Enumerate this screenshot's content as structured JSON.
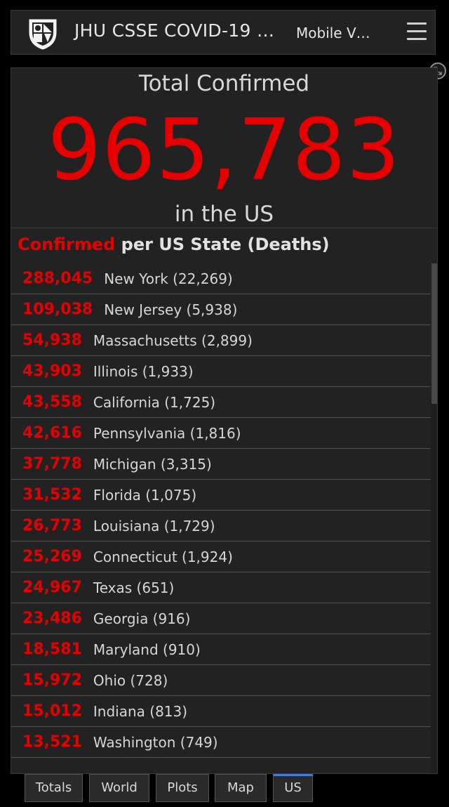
{
  "header": {
    "title": "JHU CSSE COVID-19 …",
    "subtitle": "Mobile V…",
    "logo": "jhu-shield-icon",
    "menu_icon": "hamburger-menu-icon"
  },
  "total": {
    "title": "Total Confirmed",
    "value": "965,783",
    "subtitle": "in the US",
    "expand_icon": "expand-icon"
  },
  "list": {
    "header_red": "Confirmed",
    "header_white": " per US State (Deaths)",
    "rows": [
      {
        "count": "288,045",
        "label": "New York (22,269)"
      },
      {
        "count": "109,038",
        "label": "New Jersey (5,938)"
      },
      {
        "count": "54,938",
        "label": "Massachusetts (2,899)"
      },
      {
        "count": "43,903",
        "label": "Illinois (1,933)"
      },
      {
        "count": "43,558",
        "label": "California (1,725)"
      },
      {
        "count": "42,616",
        "label": "Pennsylvania (1,816)"
      },
      {
        "count": "37,778",
        "label": "Michigan (3,315)"
      },
      {
        "count": "31,532",
        "label": "Florida (1,075)"
      },
      {
        "count": "26,773",
        "label": "Louisiana (1,729)"
      },
      {
        "count": "25,269",
        "label": "Connecticut (1,924)"
      },
      {
        "count": "24,967",
        "label": "Texas (651)"
      },
      {
        "count": "23,486",
        "label": "Georgia (916)"
      },
      {
        "count": "18,581",
        "label": "Maryland (910)"
      },
      {
        "count": "15,972",
        "label": "Ohio (728)"
      },
      {
        "count": "15,012",
        "label": "Indiana (813)"
      },
      {
        "count": "13,521",
        "label": "Washington (749)"
      }
    ]
  },
  "tabs": [
    {
      "label": "Totals"
    },
    {
      "label": "World"
    },
    {
      "label": "Plots"
    },
    {
      "label": "Map"
    },
    {
      "label": "US",
      "active": true
    }
  ],
  "colors": {
    "accent_red": "#e60000",
    "active_tab": "#3f7fd8",
    "panel_bg": "#222222"
  }
}
